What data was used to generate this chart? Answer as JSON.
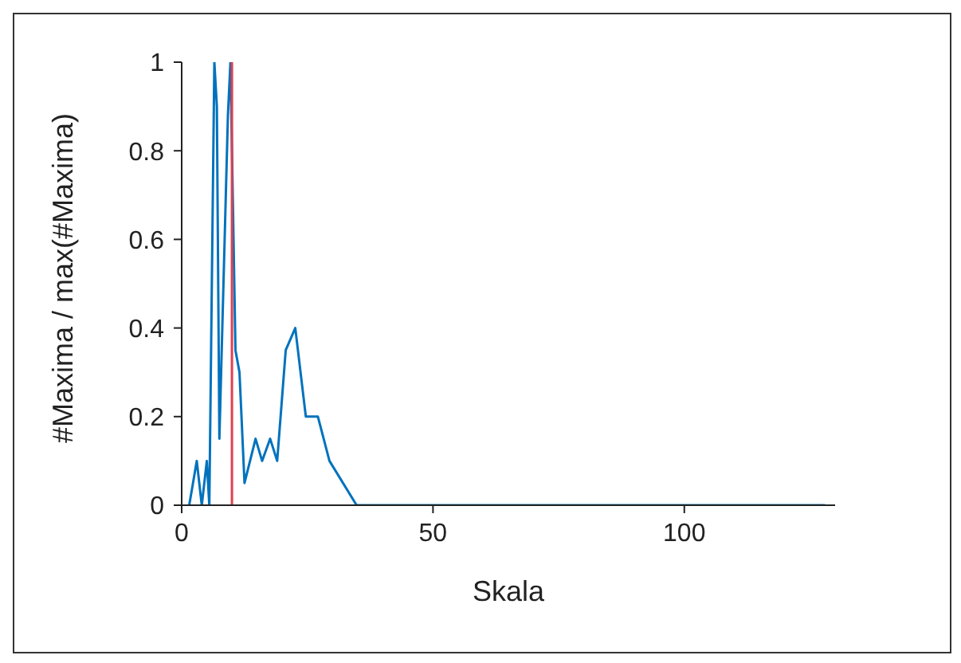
{
  "chart_data": {
    "type": "line",
    "xlabel": "Skala",
    "ylabel": "#Maxima / max(#Maxima)",
    "x": [
      1.5,
      3,
      4,
      5,
      5.5,
      6.5,
      7,
      7.5,
      9.2,
      9.7,
      10.7,
      11.5,
      12.5,
      14.7,
      16,
      17.6,
      19,
      20.7,
      22.6,
      24.7,
      27.1,
      29.4,
      34.8,
      128
    ],
    "series": [
      {
        "color": "#0072bd",
        "values": [
          0,
          0.1,
          0,
          0.1,
          0,
          1,
          0.9,
          0.15,
          0.88,
          1,
          0.35,
          0.3,
          0.05,
          0.15,
          0.1,
          0.15,
          0.1,
          0.35,
          0.4,
          0.2,
          0.2,
          0.1,
          0,
          0
        ]
      }
    ],
    "xlim": [
      0,
      130
    ],
    "xticks": [
      0,
      50,
      100
    ],
    "ylim": [
      0,
      1
    ],
    "yticks": [
      0,
      0.2,
      0.4,
      0.6,
      0.8,
      1
    ],
    "ref_lines": [
      {
        "axis": "x",
        "value": 10,
        "color": "#e0404f"
      }
    ],
    "grid": false,
    "legend": false,
    "marker": "none",
    "line_style": "solid"
  }
}
